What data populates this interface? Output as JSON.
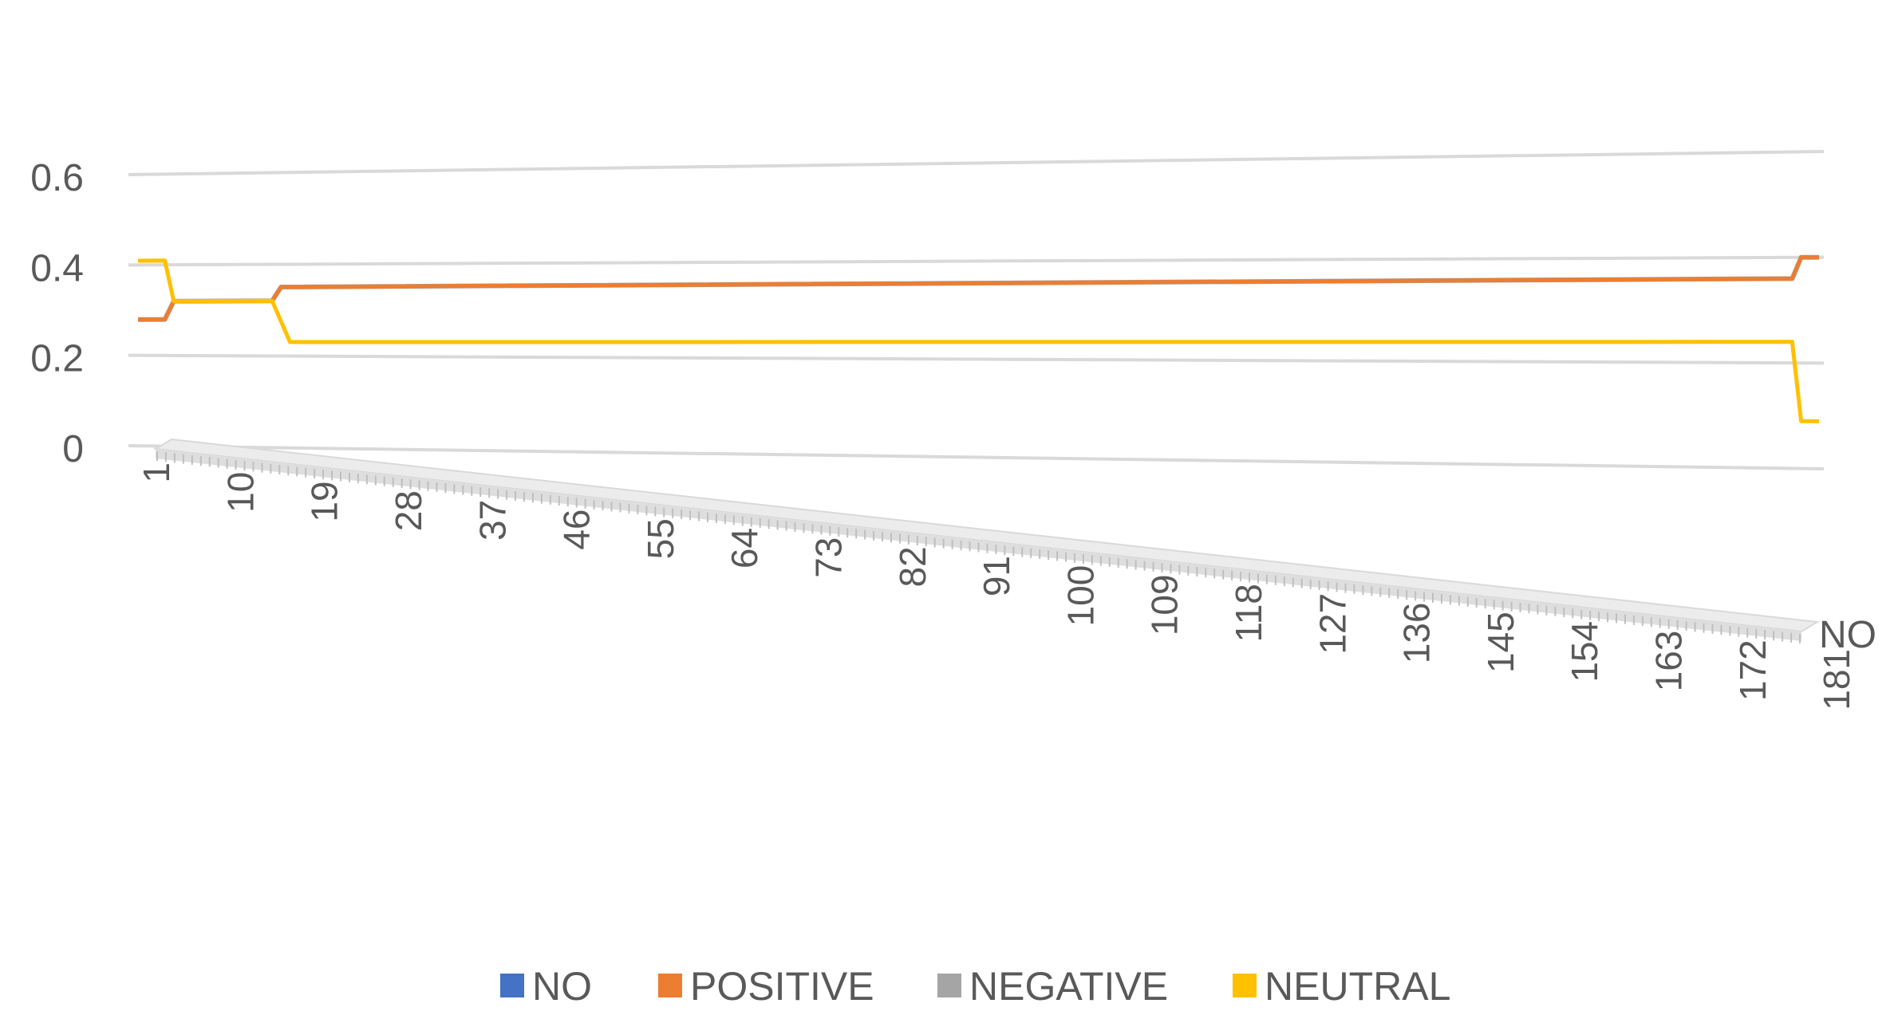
{
  "chart_data": {
    "type": "line",
    "title": "",
    "xlabel": "",
    "ylabel": "",
    "depth_axis_label": "NO",
    "ylim": [
      0,
      0.6
    ],
    "y_ticks": [
      "0",
      "0.2",
      "0.4",
      "0.6"
    ],
    "x_tick_labels": [
      "1",
      "10",
      "19",
      "28",
      "37",
      "46",
      "55",
      "64",
      "73",
      "82",
      "91",
      "100",
      "109",
      "118",
      "127",
      "136",
      "145",
      "154",
      "163",
      "172",
      "181"
    ],
    "x_range": [
      1,
      189
    ],
    "grid": true,
    "legend_position": "bottom",
    "series": [
      {
        "name": "NO",
        "color": "#4472C4",
        "points": [
          [
            1,
            0.29
          ],
          [
            4,
            0.29
          ],
          [
            5,
            0.33
          ],
          [
            16,
            0.33
          ],
          [
            17,
            0.36
          ],
          [
            186,
            0.36
          ],
          [
            187,
            0.4
          ],
          [
            189,
            0.4
          ]
        ]
      },
      {
        "name": "POSITIVE",
        "color": "#ED7D31",
        "points": [
          [
            1,
            0.29
          ],
          [
            4,
            0.29
          ],
          [
            5,
            0.33
          ],
          [
            16,
            0.33
          ],
          [
            17,
            0.36
          ],
          [
            186,
            0.36
          ],
          [
            187,
            0.4
          ],
          [
            189,
            0.4
          ]
        ]
      },
      {
        "name": "NEGATIVE",
        "color": "#A5A5A5",
        "points": [
          [
            1,
            0.29
          ],
          [
            4,
            0.29
          ],
          [
            5,
            0.33
          ],
          [
            16,
            0.33
          ],
          [
            17,
            0.36
          ],
          [
            186,
            0.36
          ],
          [
            187,
            0.4
          ],
          [
            189,
            0.4
          ]
        ]
      },
      {
        "name": "NEUTRAL",
        "color": "#FFC000",
        "points": [
          [
            1,
            0.42
          ],
          [
            4,
            0.42
          ],
          [
            5,
            0.33
          ],
          [
            16,
            0.33
          ],
          [
            18,
            0.24
          ],
          [
            186,
            0.24
          ],
          [
            187,
            0.09
          ],
          [
            189,
            0.09
          ]
        ]
      }
    ]
  }
}
